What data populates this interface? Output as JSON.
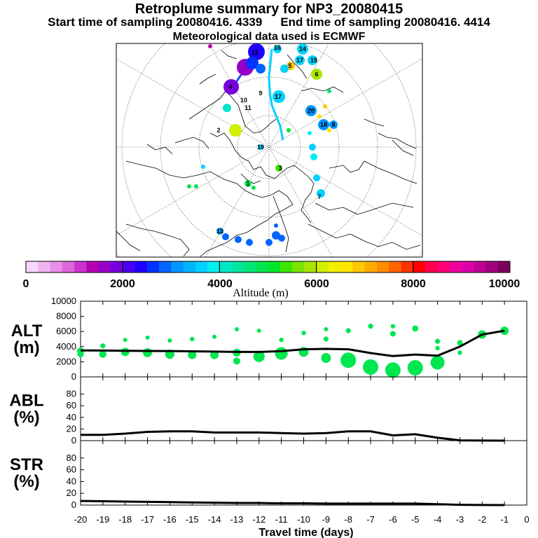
{
  "header": {
    "title": "Retroplume summary for NP3_20080415",
    "start_label": "Start time of sampling 20080416.  4339",
    "end_label": "End time of sampling 20080416.  4414",
    "met_label": "Meteorological data used is ECMWF"
  },
  "colorbar": {
    "ticks": [
      "0",
      "2000",
      "4000",
      "6000",
      "8000",
      "10000"
    ],
    "label": "Altitude (m)",
    "colors": [
      "#f7d7f7",
      "#f0b3f0",
      "#e98ee9",
      "#dd66dd",
      "#cc33cc",
      "#b400b4",
      "#9600c8",
      "#7800dc",
      "#4b00f0",
      "#1e00ff",
      "#0032ff",
      "#0064ff",
      "#0096ff",
      "#00b4ff",
      "#00d2ff",
      "#00f0f0",
      "#00e6c8",
      "#00e6a0",
      "#00e678",
      "#00e650",
      "#00e628",
      "#3ce600",
      "#78e600",
      "#aae600",
      "#d2f000",
      "#f0f000",
      "#ffe600",
      "#ffc800",
      "#ffaa00",
      "#ff8c00",
      "#ff6400",
      "#ff3200",
      "#ff0000",
      "#ff0050",
      "#ff0078",
      "#f0009b",
      "#dc00aa",
      "#be0096",
      "#a0007d",
      "#7d005f"
    ]
  },
  "map": {
    "track_labels": [
      "12",
      "16",
      "14",
      "17",
      "15",
      "5",
      "6",
      "4",
      "9",
      "10",
      "11",
      "2",
      "17",
      "20",
      "18",
      "19",
      "3",
      "1",
      "7",
      "8",
      "13"
    ]
  },
  "chart_data": [
    {
      "type": "scatter",
      "panel": "ALT",
      "title": "ALT\n(m)",
      "title_lines": [
        "ALT",
        "(m)"
      ],
      "xlabel": "Travel time (days)",
      "xlim": [
        -20,
        0
      ],
      "ylim": [
        0,
        10000
      ],
      "yticks": [
        "0",
        "2000",
        "4000",
        "6000",
        "8000",
        "10000"
      ],
      "xticks": [
        "-20",
        "-19",
        "-18",
        "-17",
        "-16",
        "-15",
        "-14",
        "-13",
        "-12",
        "-11",
        "-10",
        "-9",
        "-8",
        "-7",
        "-6",
        "-5",
        "-4",
        "-3",
        "-2",
        "-1",
        "0"
      ],
      "mean_line": {
        "x": [
          -20,
          -19,
          -18,
          -17,
          -16,
          -15,
          -14,
          -13,
          -12,
          -11,
          -10,
          -9,
          -8,
          -7,
          -6,
          -5,
          -4,
          -3,
          -2,
          -1
        ],
        "y": [
          3500,
          3480,
          3450,
          3430,
          3420,
          3380,
          3350,
          3300,
          3300,
          3400,
          3650,
          3700,
          3650,
          3150,
          2750,
          2950,
          2800,
          4000,
          5600,
          6100
        ]
      },
      "cluster_points": [
        {
          "x": -20,
          "y": 3400,
          "w": 0.16
        },
        {
          "x": -20,
          "y": 3000,
          "w": 0.12
        },
        {
          "x": -19,
          "y": 3000,
          "w": 0.16
        },
        {
          "x": -19,
          "y": 4100,
          "w": 0.08
        },
        {
          "x": -18,
          "y": 3300,
          "w": 0.2
        },
        {
          "x": -18,
          "y": 4900,
          "w": 0.05
        },
        {
          "x": -17,
          "y": 3200,
          "w": 0.22
        },
        {
          "x": -17,
          "y": 5200,
          "w": 0.05
        },
        {
          "x": -16,
          "y": 3000,
          "w": 0.23
        },
        {
          "x": -16,
          "y": 4800,
          "w": 0.05
        },
        {
          "x": -15,
          "y": 2900,
          "w": 0.2
        },
        {
          "x": -15,
          "y": 5000,
          "w": 0.06
        },
        {
          "x": -14,
          "y": 2900,
          "w": 0.2
        },
        {
          "x": -14,
          "y": 5300,
          "w": 0.05
        },
        {
          "x": -13,
          "y": 3200,
          "w": 0.18
        },
        {
          "x": -13,
          "y": 2100,
          "w": 0.15
        },
        {
          "x": -13,
          "y": 6300,
          "w": 0.05
        },
        {
          "x": -12,
          "y": 2700,
          "w": 0.3
        },
        {
          "x": -12,
          "y": 6100,
          "w": 0.05
        },
        {
          "x": -11,
          "y": 3100,
          "w": 0.35
        },
        {
          "x": -11,
          "y": 4900,
          "w": 0.06
        },
        {
          "x": -10,
          "y": 3300,
          "w": 0.25
        },
        {
          "x": -10,
          "y": 5800,
          "w": 0.06
        },
        {
          "x": -9,
          "y": 2500,
          "w": 0.25
        },
        {
          "x": -9,
          "y": 5000,
          "w": 0.08
        },
        {
          "x": -9,
          "y": 6300,
          "w": 0.05
        },
        {
          "x": -8,
          "y": 2200,
          "w": 0.45
        },
        {
          "x": -8,
          "y": 6100,
          "w": 0.08
        },
        {
          "x": -7,
          "y": 1300,
          "w": 0.45
        },
        {
          "x": -7,
          "y": 6700,
          "w": 0.08
        },
        {
          "x": -6,
          "y": 900,
          "w": 0.45
        },
        {
          "x": -6,
          "y": 5700,
          "w": 0.1
        },
        {
          "x": -6,
          "y": 6700,
          "w": 0.06
        },
        {
          "x": -5,
          "y": 1200,
          "w": 0.45
        },
        {
          "x": -5,
          "y": 6400,
          "w": 0.12
        },
        {
          "x": -4,
          "y": 1900,
          "w": 0.4
        },
        {
          "x": -4,
          "y": 4700,
          "w": 0.08
        },
        {
          "x": -4,
          "y": 3800,
          "w": 0.06
        },
        {
          "x": -3,
          "y": 4500,
          "w": 0.1
        },
        {
          "x": -3,
          "y": 3200,
          "w": 0.06
        },
        {
          "x": -2,
          "y": 5600,
          "w": 0.2
        },
        {
          "x": -1,
          "y": 6100,
          "w": 0.2
        }
      ]
    },
    {
      "type": "line",
      "panel": "ABL",
      "title": "ABL\n(%)",
      "title_lines": [
        "ABL",
        "(%)"
      ],
      "xlim": [
        -20,
        0
      ],
      "ylim": [
        0,
        100
      ],
      "yticks": [
        "0",
        "20",
        "40",
        "60",
        "80"
      ],
      "x": [
        -20,
        -19,
        -18,
        -17,
        -16,
        -15,
        -14,
        -13,
        -12,
        -11,
        -10,
        -9,
        -8,
        -7,
        -6,
        -5,
        -4,
        -3,
        -2,
        -1
      ],
      "y": [
        10,
        10,
        12,
        15,
        16,
        16,
        14,
        14,
        14,
        13,
        12,
        13,
        16,
        16,
        9,
        11,
        5,
        0.5,
        0.2,
        0
      ]
    },
    {
      "type": "line",
      "panel": "STR",
      "title": "STR\n(%)",
      "title_lines": [
        "STR",
        "(%)"
      ],
      "xlim": [
        -20,
        0
      ],
      "ylim": [
        0,
        100
      ],
      "yticks": [
        "0",
        "20",
        "40",
        "60",
        "80"
      ],
      "x": [
        -20,
        -19,
        -18,
        -17,
        -16,
        -15,
        -14,
        -13,
        -12,
        -11,
        -10,
        -9,
        -8,
        -7,
        -6,
        -5,
        -4,
        -3,
        -2,
        -1
      ],
      "y": [
        7,
        6.5,
        6,
        5.5,
        5,
        4.5,
        4,
        3.5,
        3.5,
        3,
        3,
        2.5,
        2.5,
        2.5,
        2.5,
        2.5,
        1.5,
        0.5,
        0.2,
        0
      ]
    }
  ]
}
